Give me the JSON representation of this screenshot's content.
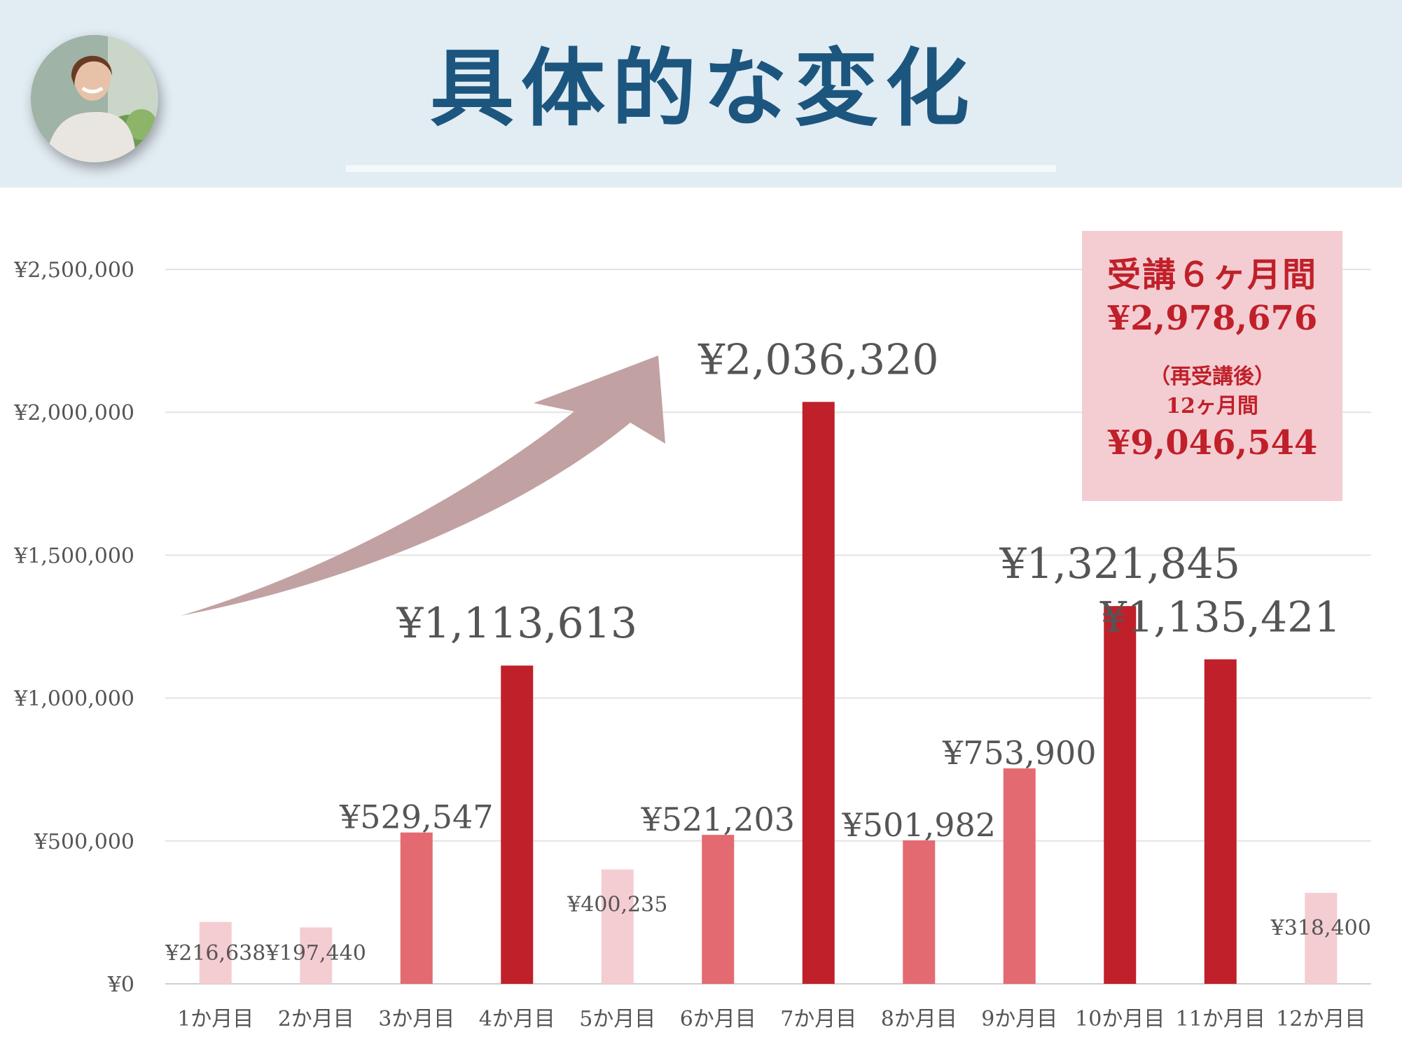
{
  "header": {
    "title": "具体的な変化",
    "avatar_icon": "woman-portrait-photo"
  },
  "callout": {
    "line1": "受講６ヶ月間",
    "line2": "¥2,978,676",
    "line3": "（再受講後）",
    "line4": "12ヶ月間",
    "line5": "¥9,046,544"
  },
  "colors": {
    "header_bg": "#e2ecf3",
    "title": "#1c567f",
    "bar_light": "#f4cdd2",
    "bar_medium": "#e36a70",
    "bar_dark": "#c0202a",
    "arrow": "#c2a1a3",
    "callout_bg": "#f4cdd2",
    "callout_text": "#c0202a"
  },
  "chart_data": {
    "type": "bar",
    "categories": [
      "1か月目",
      "2か月目",
      "3か月目",
      "4か月目",
      "5か月目",
      "6か月目",
      "7か月目",
      "8か月目",
      "9か月目",
      "10か月目",
      "11か月目",
      "12か月目"
    ],
    "values": [
      216638,
      197440,
      529547,
      1113613,
      400235,
      521203,
      2036320,
      501982,
      753900,
      1321845,
      1135421,
      318400
    ],
    "value_labels": [
      "¥216,638",
      "¥197,440",
      "¥529,547",
      "¥1,113,613",
      "¥400,235",
      "¥521,203",
      "¥2,036,320",
      "¥501,982",
      "¥753,900",
      "¥1,321,845",
      "¥1,135,421",
      "¥318,400"
    ],
    "bar_tones": [
      "light",
      "light",
      "medium",
      "dark",
      "light",
      "medium",
      "dark",
      "medium",
      "medium",
      "dark",
      "dark",
      "light"
    ],
    "yticks": [
      0,
      500000,
      1000000,
      1500000,
      2000000,
      2500000
    ],
    "ytick_labels": [
      "¥0",
      "¥500,000",
      "¥1,000,000",
      "¥1,500,000",
      "¥2,000,000",
      "¥2,500,000"
    ],
    "ylim": [
      0,
      2500000
    ],
    "grid": true,
    "title": "",
    "xlabel": "",
    "ylabel": ""
  }
}
